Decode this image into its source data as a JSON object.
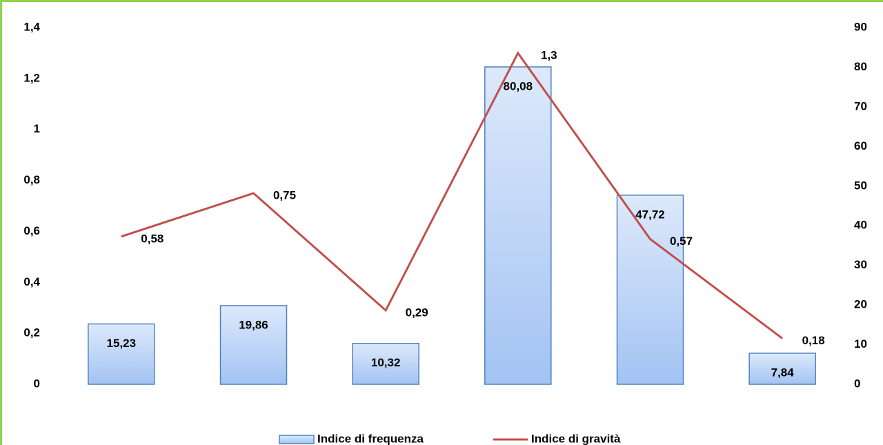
{
  "chart_data": {
    "type": "bar-line",
    "categories": [
      null,
      null,
      null,
      null,
      null,
      null
    ],
    "series": [
      {
        "name": "Indice di frequenza",
        "type": "bar",
        "axis": "y2",
        "color": "#4f81bd",
        "values": [
          15.23,
          19.86,
          10.32,
          80.08,
          47.72,
          7.84
        ],
        "value_labels": [
          "15,23",
          "19,86",
          "10,32",
          "80,08",
          "47,72",
          "7,84"
        ]
      },
      {
        "name": "Indice di gravità",
        "type": "line",
        "axis": "y",
        "color": "#c0504d",
        "values": [
          0.58,
          0.75,
          0.29,
          1.3,
          0.57,
          0.18
        ],
        "value_labels": [
          "0,58",
          "0,75",
          "0,29",
          "1,3",
          "0,57",
          "0,18"
        ]
      }
    ],
    "ylim": [
      0,
      1.4
    ],
    "yticks": [
      0,
      {
        "value": 0.2,
        "label": "0,2"
      },
      {
        "value": 0.4,
        "label": "0,4"
      },
      {
        "value": 0.6,
        "label": "0,6"
      },
      {
        "value": 0.8,
        "label": "0,8"
      },
      1,
      {
        "value": 1.2,
        "label": "1,2"
      },
      {
        "value": 1.4,
        "label": "1,4"
      }
    ],
    "y2lim": [
      0,
      90
    ],
    "y2ticks": [
      0,
      10,
      20,
      30,
      40,
      50,
      60,
      70,
      80,
      90
    ],
    "legend": "bottom"
  }
}
